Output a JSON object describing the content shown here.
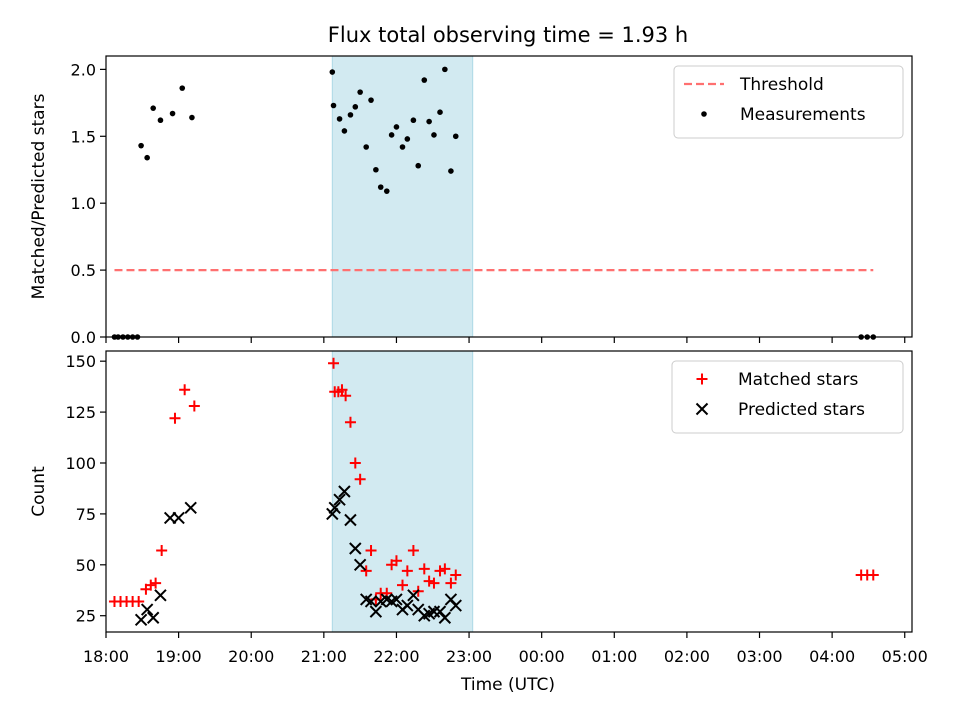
{
  "chart_data": {
    "title": "Flux total observing time = 1.93 h",
    "xlabel": "Time (UTC)",
    "x_ticks": [
      "18:00",
      "19:00",
      "20:00",
      "21:00",
      "22:00",
      "23:00",
      "00:00",
      "01:00",
      "02:00",
      "03:00",
      "04:00",
      "05:00"
    ],
    "shaded_interval": {
      "start": "21:07",
      "end": "23:03",
      "color": "#add8e6"
    },
    "panels": [
      {
        "type": "scatter",
        "ylabel": "Matched/Predicted stars",
        "ylim": [
          0,
          2.1
        ],
        "y_ticks": [
          "0.0",
          "0.5",
          "1.0",
          "1.5",
          "2.0"
        ],
        "legend_position": "top-right",
        "threshold": {
          "name": "Threshold",
          "value": 0.5,
          "x_start": "18:07",
          "x_end": "04:34",
          "color": "#ff7070",
          "style": "dashed"
        },
        "series": [
          {
            "name": "Measurements",
            "color": "#000000",
            "marker": "dot",
            "points": [
              [
                "18:07",
                0
              ],
              [
                "18:10",
                0
              ],
              [
                "18:14",
                0
              ],
              [
                "18:18",
                0
              ],
              [
                "18:22",
                0
              ],
              [
                "18:26",
                0
              ],
              [
                "18:29",
                1.43
              ],
              [
                "18:34",
                1.34
              ],
              [
                "18:39",
                1.71
              ],
              [
                "18:45",
                1.62
              ],
              [
                "18:55",
                1.67
              ],
              [
                "19:03",
                1.86
              ],
              [
                "19:11",
                1.64
              ],
              [
                "21:07",
                1.98
              ],
              [
                "21:08",
                1.73
              ],
              [
                "21:13",
                1.63
              ],
              [
                "21:17",
                1.54
              ],
              [
                "21:22",
                1.66
              ],
              [
                "21:26",
                1.72
              ],
              [
                "21:30",
                1.83
              ],
              [
                "21:35",
                1.42
              ],
              [
                "21:39",
                1.77
              ],
              [
                "21:43",
                1.25
              ],
              [
                "21:47",
                1.12
              ],
              [
                "21:52",
                1.09
              ],
              [
                "21:56",
                1.51
              ],
              [
                "22:00",
                1.57
              ],
              [
                "22:05",
                1.42
              ],
              [
                "22:09",
                1.48
              ],
              [
                "22:14",
                1.62
              ],
              [
                "22:18",
                1.28
              ],
              [
                "22:23",
                1.92
              ],
              [
                "22:27",
                1.61
              ],
              [
                "22:31",
                1.51
              ],
              [
                "22:36",
                1.68
              ],
              [
                "22:40",
                2.0
              ],
              [
                "22:45",
                1.24
              ],
              [
                "22:49",
                1.5
              ],
              [
                "04:24",
                0
              ],
              [
                "04:29",
                0
              ],
              [
                "04:34",
                0
              ]
            ]
          }
        ]
      },
      {
        "type": "scatter",
        "ylabel": "Count",
        "ylim": [
          17,
          155
        ],
        "y_ticks": [
          "25",
          "50",
          "75",
          "100",
          "125",
          "150"
        ],
        "legend_position": "top-right",
        "series": [
          {
            "name": "Matched stars",
            "color": "#ff0000",
            "marker": "plus",
            "points": [
              [
                "18:07",
                32
              ],
              [
                "18:12",
                32
              ],
              [
                "18:17",
                32
              ],
              [
                "18:22",
                32
              ],
              [
                "18:27",
                32
              ],
              [
                "18:33",
                38
              ],
              [
                "18:37",
                40
              ],
              [
                "18:41",
                41
              ],
              [
                "18:46",
                57
              ],
              [
                "18:57",
                122
              ],
              [
                "19:05",
                136
              ],
              [
                "19:13",
                128
              ],
              [
                "21:08",
                149
              ],
              [
                "21:09",
                135
              ],
              [
                "21:12",
                135
              ],
              [
                "21:15",
                136
              ],
              [
                "21:18",
                133
              ],
              [
                "21:22",
                120
              ],
              [
                "21:26",
                100
              ],
              [
                "21:30",
                92
              ],
              [
                "21:35",
                47
              ],
              [
                "21:39",
                57
              ],
              [
                "21:43",
                33
              ],
              [
                "21:47",
                36
              ],
              [
                "21:52",
                36
              ],
              [
                "21:56",
                50
              ],
              [
                "22:00",
                52
              ],
              [
                "22:05",
                40
              ],
              [
                "22:09",
                47
              ],
              [
                "22:14",
                57
              ],
              [
                "22:18",
                37
              ],
              [
                "22:23",
                48
              ],
              [
                "22:27",
                42
              ],
              [
                "22:31",
                41
              ],
              [
                "22:36",
                47
              ],
              [
                "22:40",
                48
              ],
              [
                "22:45",
                41
              ],
              [
                "22:49",
                45
              ],
              [
                "04:24",
                45
              ],
              [
                "04:29",
                45
              ],
              [
                "04:34",
                45
              ]
            ]
          },
          {
            "name": "Predicted stars",
            "color": "#000000",
            "marker": "x",
            "points": [
              [
                "18:29",
                23
              ],
              [
                "18:34",
                28
              ],
              [
                "18:39",
                24
              ],
              [
                "18:45",
                35
              ],
              [
                "18:53",
                73
              ],
              [
                "19:00",
                73
              ],
              [
                "19:10",
                78
              ],
              [
                "21:07",
                75
              ],
              [
                "21:09",
                78
              ],
              [
                "21:13",
                82
              ],
              [
                "21:17",
                86
              ],
              [
                "21:22",
                72
              ],
              [
                "21:26",
                58
              ],
              [
                "21:30",
                50
              ],
              [
                "21:35",
                33
              ],
              [
                "21:39",
                32
              ],
              [
                "21:43",
                27
              ],
              [
                "21:47",
                32
              ],
              [
                "21:52",
                33
              ],
              [
                "21:56",
                32
              ],
              [
                "22:00",
                33
              ],
              [
                "22:05",
                28
              ],
              [
                "22:09",
                30
              ],
              [
                "22:14",
                35
              ],
              [
                "22:18",
                28
              ],
              [
                "22:23",
                25
              ],
              [
                "22:27",
                26
              ],
              [
                "22:31",
                27
              ],
              [
                "22:36",
                27
              ],
              [
                "22:40",
                24
              ],
              [
                "22:45",
                33
              ],
              [
                "22:49",
                30
              ]
            ]
          }
        ]
      }
    ]
  }
}
